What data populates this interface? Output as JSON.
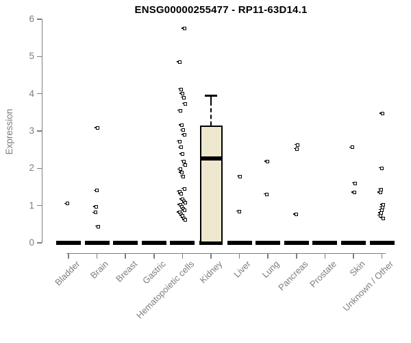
{
  "chart_data": {
    "type": "boxplot",
    "title": "ENSG00000255477 - RP11-63D14.1",
    "ylabel": "Expression",
    "ylim": [
      0,
      6
    ],
    "yticks": [
      0,
      1,
      2,
      3,
      4,
      5,
      6
    ],
    "grid": false,
    "legend": null,
    "categories": [
      "Bladder",
      "Brain",
      "Breast",
      "Gastric",
      "Hematopoietic cells",
      "Kidney",
      "Liver",
      "Lung",
      "Pancreas",
      "Prostate",
      "Skin",
      "Unknown / Other"
    ],
    "groups": [
      {
        "name": "Bladder",
        "median": 0,
        "points": [
          1.05
        ]
      },
      {
        "name": "Brain",
        "median": 0,
        "points": [
          3.08,
          1.4,
          0.96,
          0.81,
          0.44
        ]
      },
      {
        "name": "Breast",
        "median": 0,
        "points": []
      },
      {
        "name": "Gastric",
        "median": 0,
        "points": []
      },
      {
        "name": "Hematopoietic cells",
        "median": 0,
        "points": [
          5.75,
          4.85,
          4.12,
          4.0,
          3.9,
          3.73,
          3.55,
          3.15,
          3.02,
          2.9,
          2.72,
          2.56,
          2.38,
          2.19,
          2.08,
          1.97,
          1.88,
          1.78,
          1.45,
          1.38,
          1.31,
          1.17,
          1.12,
          1.07,
          1.02,
          0.97,
          0.92,
          0.87,
          0.82,
          0.77,
          0.72,
          0.66,
          0.61
        ]
      },
      {
        "name": "Kidney",
        "median": 2.27,
        "box": {
          "q1": 0,
          "q3": 3.14,
          "whisker_low": 0,
          "whisker_high": 3.97
        },
        "points": []
      },
      {
        "name": "Liver",
        "median": 0,
        "points": [
          1.78,
          0.84
        ]
      },
      {
        "name": "Lung",
        "median": 0,
        "points": [
          2.18,
          1.3
        ]
      },
      {
        "name": "Pancreas",
        "median": 0,
        "points": [
          2.63,
          2.52,
          0.76
        ]
      },
      {
        "name": "Prostate",
        "median": 0,
        "points": []
      },
      {
        "name": "Skin",
        "median": 0,
        "points": [
          2.56,
          1.6,
          1.35
        ]
      },
      {
        "name": "Unknown / Other",
        "median": 0,
        "points": [
          3.47,
          2.0,
          1.43,
          1.35,
          1.02,
          0.95,
          0.88,
          0.8,
          0.73,
          0.66
        ]
      }
    ],
    "colors": {
      "box_fill": "#EDE8CE",
      "box_border": "#000000",
      "median_line": "#000000",
      "zero_bar": "#000000",
      "point": "#000000",
      "axis": "#7d7d7d",
      "tick_label": "#7d7d7d",
      "title": "#000000"
    }
  }
}
